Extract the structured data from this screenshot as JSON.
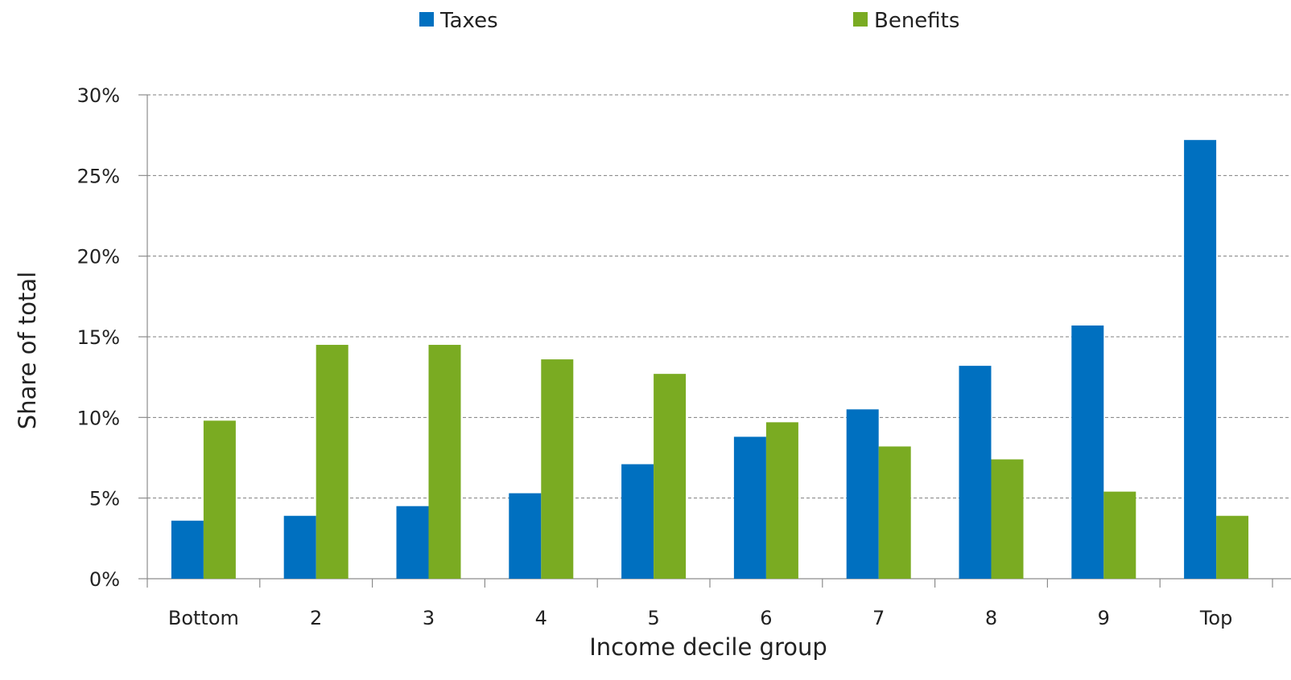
{
  "chart_data": {
    "type": "bar",
    "title": "",
    "xlabel": "Income decile group",
    "ylabel": "Share of total",
    "categories": [
      "Bottom",
      "2",
      "3",
      "4",
      "5",
      "6",
      "7",
      "8",
      "9",
      "Top"
    ],
    "series": [
      {
        "name": "Taxes",
        "color": "#0070C0",
        "values": [
          3.6,
          3.9,
          4.5,
          5.3,
          7.1,
          8.8,
          10.5,
          13.2,
          15.7,
          27.2
        ]
      },
      {
        "name": "Benefits",
        "color": "#7AAB22",
        "values": [
          9.8,
          14.5,
          14.5,
          13.6,
          12.7,
          9.7,
          8.2,
          7.4,
          5.4,
          3.9
        ]
      }
    ],
    "ylim": [
      0,
      30
    ],
    "yticks": [
      0,
      5,
      10,
      15,
      20,
      25,
      30
    ],
    "ytick_labels": [
      "0%",
      "5%",
      "10%",
      "15%",
      "20%",
      "25%",
      "30%"
    ],
    "grid": true,
    "legend_position": "top"
  }
}
